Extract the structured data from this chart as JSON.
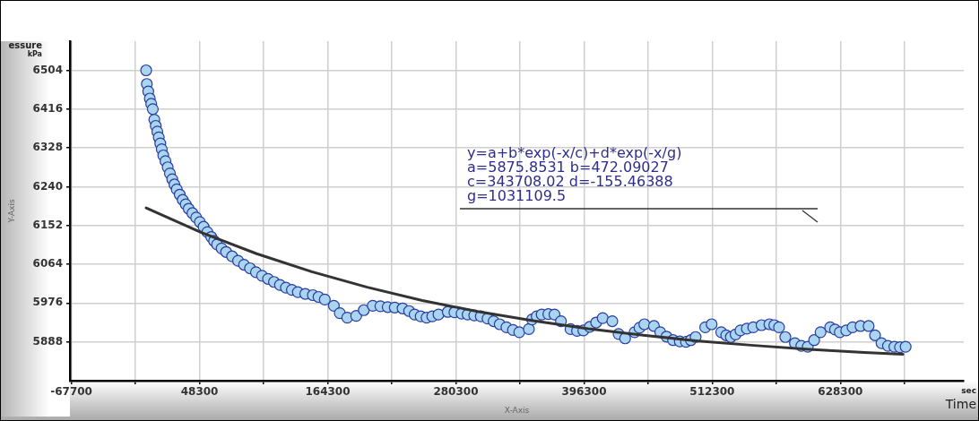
{
  "chart_data": {
    "type": "scatter",
    "xlabel": "X-Axis",
    "ylabel": "Y-Axis",
    "annotations": [
      "y=a+b*exp(-x/c)+d*exp(-x/g)",
      "a=5875.8531 b=472.09027",
      "c=343708.02 d=-155.46388",
      "g=1031109.5",
      "essure",
      "kPa",
      "sec",
      "Time"
    ],
    "xlim": [
      -69000,
      740000
    ],
    "xticks": [
      -67700,
      {
        "value": -9700,
        "label": null
      },
      48300,
      {
        "value": 106300,
        "label": null
      },
      164300,
      {
        "value": 222300,
        "label": null
      },
      280300,
      {
        "value": 338300,
        "label": null
      },
      396300,
      {
        "value": 454300,
        "label": null
      },
      512300,
      {
        "value": 570300,
        "label": null
      },
      628300,
      {
        "value": 686300,
        "label": null
      }
    ],
    "ylim": [
      5800,
      6570
    ],
    "yticks": [
      5888,
      5976,
      6064,
      6152,
      6240,
      6328,
      6416,
      6504
    ],
    "grid": true,
    "series": [
      {
        "type": "scatter",
        "color": "#a9d5f0",
        "marker": "circle",
        "x": [
          0,
          600,
          1900,
          3300,
          4600,
          6000,
          7400,
          8700,
          10100,
          11400,
          12800,
          14100,
          15500,
          17500,
          19500,
          21500,
          23600,
          25600,
          27700,
          30400,
          33100,
          35800,
          38500,
          41900,
          45300,
          48600,
          52000,
          55400,
          58900,
          61500,
          64200,
          68300,
          72400,
          77800,
          83200,
          88600,
          94000,
          99400,
          104900,
          110300,
          115700,
          121100,
          126500,
          131900,
          137300,
          144000,
          150900,
          156000,
          161700,
          169900,
          175300,
          182000,
          190100,
          197000,
          205100,
          212000,
          218600,
          225000,
          232100,
          238000,
          243000,
          248500,
          253800,
          259000,
          264600,
          273000,
          279000,
          285500,
          291000,
          297000,
          302900,
          309000,
          314500,
          320000,
          326100,
          332000,
          337700,
          346400,
          349300,
          353500,
          358000,
          364000,
          369600,
          375400,
          384100,
          390000,
          395700,
          401500,
          407300,
          413200,
          421900,
          427600,
          433500,
          442100,
          446500,
          450900,
          459600,
          465300,
          471000,
          476900,
          483000,
          488600,
          493000,
          497300,
          506000,
          511800,
          520500,
          525000,
          529200,
          533500,
          537900,
          543700,
          549500,
          557000,
          564100,
          568500,
          572800,
          578500,
          587200,
          593000,
          598800,
          604600,
          610400,
          619100,
          623500,
          627800,
          633600,
          639400,
          646600,
          653900,
          659700,
          665600,
          671400,
          677200,
          682300,
          687400
        ],
        "values": [
          6504,
          6473,
          6456,
          6440,
          6428,
          6416,
          6392,
          6378,
          6365,
          6352,
          6338,
          6325,
          6311,
          6298,
          6284,
          6270,
          6257,
          6245,
          6234,
          6222,
          6210,
          6200,
          6190,
          6180,
          6170,
          6160,
          6149,
          6137,
          6126,
          6117,
          6109,
          6100,
          6092,
          6082,
          6072,
          6063,
          6055,
          6046,
          6038,
          6031,
          6024,
          6017,
          6011,
          6006,
          6001,
          5997,
          5994,
          5990,
          5984,
          5970,
          5953,
          5943,
          5947,
          5960,
          5970,
          5969,
          5967,
          5966,
          5964,
          5958,
          5950,
          5946,
          5943,
          5946,
          5950,
          5956,
          5955,
          5952,
          5950,
          5948,
          5946,
          5941,
          5935,
          5928,
          5921,
          5915,
          5910,
          5917,
          5939,
          5946,
          5950,
          5951,
          5950,
          5935,
          5917,
          5913,
          5914,
          5922,
          5932,
          5942,
          5935,
          5906,
          5896,
          5910,
          5920,
          5928,
          5924,
          5910,
          5900,
          5892,
          5889,
          5888,
          5892,
          5899,
          5921,
          5928,
          5910,
          5903,
          5899,
          5905,
          5914,
          5918,
          5921,
          5926,
          5928,
          5926,
          5921,
          5899,
          5885,
          5879,
          5877,
          5892,
          5910,
          5921,
          5916,
          5910,
          5914,
          5921,
          5924,
          5924,
          5903,
          5885,
          5879,
          5877,
          5876,
          5877
        ]
      },
      {
        "type": "line",
        "color": "#333333",
        "marker": "none",
        "line_style": "solid",
        "x": [
          0,
          50000,
          100000,
          150000,
          200000,
          250000,
          300000,
          350000,
          400000,
          450000,
          500000,
          550000,
          600000,
          650000,
          685000
        ],
        "values": [
          6192,
          6136,
          6088,
          6047,
          6012,
          5982,
          5957,
          5936,
          5918,
          5903,
          5890,
          5880,
          5871,
          5864,
          5860
        ]
      }
    ]
  }
}
